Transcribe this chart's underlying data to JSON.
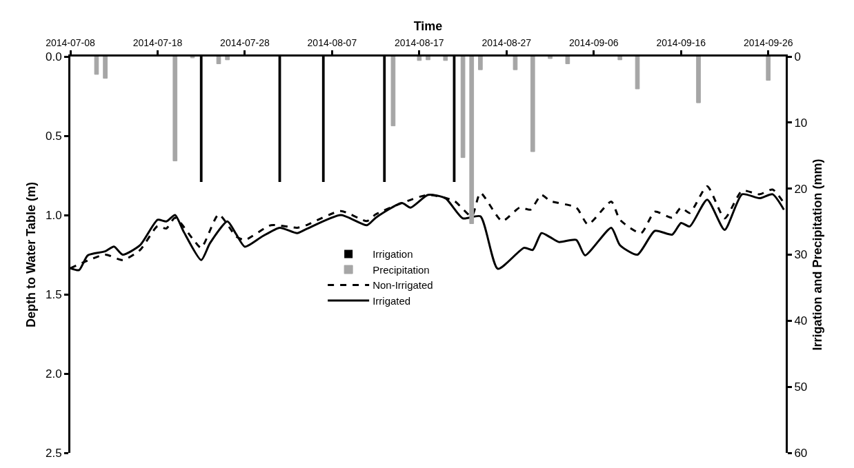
{
  "chart_data": {
    "type": "line",
    "xlabel": "Time",
    "ylabel": "Depth to Water Table (m)",
    "y2label": "Irrigation and Precipitation (mm)",
    "xlim": [
      "2014-07-08",
      "2014-09-28"
    ],
    "xticks": [
      "2014-07-08",
      "2014-07-18",
      "2014-07-28",
      "2014-08-07",
      "2014-08-17",
      "2014-08-27",
      "2014-09-06",
      "2014-09-16",
      "2014-09-26"
    ],
    "ylim": [
      2.5,
      0
    ],
    "yticks": [
      {
        "value": 0,
        "label": "0.0"
      },
      0.5,
      {
        "value": 1,
        "label": "1.0"
      },
      1.5,
      {
        "value": 2,
        "label": "2.0"
      },
      2.5
    ],
    "y2lim": [
      60,
      0
    ],
    "y2ticks": [
      0,
      10,
      20,
      30,
      40,
      50,
      60
    ],
    "grid": false,
    "legend": "center",
    "marker": "none",
    "series": [
      {
        "name": "Irrigation",
        "type": "bar",
        "axis": "y2",
        "color": "#000000",
        "x": [
          "2014-07-23",
          "2014-08-01",
          "2014-08-06",
          "2014-08-13",
          "2014-08-21"
        ],
        "values": [
          19,
          19,
          19,
          19,
          19
        ]
      },
      {
        "name": "Precipitation",
        "type": "bar",
        "axis": "y2",
        "color": "#a6a6a6",
        "x": [
          "2014-07-11",
          "2014-07-12",
          "2014-07-20",
          "2014-07-22",
          "2014-07-25",
          "2014-07-26",
          "2014-08-14",
          "2014-08-17",
          "2014-08-18",
          "2014-08-20",
          "2014-08-22",
          "2014-08-23",
          "2014-08-24",
          "2014-08-28",
          "2014-08-30",
          "2014-09-01",
          "2014-09-03",
          "2014-09-09",
          "2014-09-11",
          "2014-09-18",
          "2014-09-26"
        ],
        "values": [
          2.7,
          3.3,
          15.8,
          0.2,
          1.1,
          0.5,
          10.5,
          0.6,
          0.5,
          0.6,
          15.3,
          25.3,
          2.0,
          2.0,
          14.4,
          0.3,
          1.1,
          0.5,
          4.9,
          7.0,
          3.6
        ]
      },
      {
        "name": "Non-Irrigated",
        "line_style": "dashed",
        "color": "#000000",
        "x": [
          "2014-07-08",
          "2014-07-12",
          "2014-07-14",
          "2014-07-16",
          "2014-07-18",
          "2014-07-19",
          "2014-07-20",
          "2014-07-22",
          "2014-07-23",
          "2014-07-25",
          "2014-07-27",
          "2014-07-28",
          "2014-07-31",
          "2014-08-03",
          "2014-08-04",
          "2014-08-08",
          "2014-08-11",
          "2014-08-12",
          "2014-08-15",
          "2014-08-18",
          "2014-08-21",
          "2014-08-23",
          "2014-08-24",
          "2014-08-26T12:00",
          "2014-08-28T12:00",
          "2014-08-29T18:00",
          "2014-08-31",
          "2014-09-01",
          "2014-09-04",
          "2014-09-05T08:00",
          "2014-09-08",
          "2014-09-09",
          "2014-09-11T10:00",
          "2014-09-13",
          "2014-09-15",
          "2014-09-16",
          "2014-09-17",
          "2014-09-19",
          "2014-09-21",
          "2014-09-23",
          "2014-09-25",
          "2014-09-26T12:00",
          "2014-09-27T19:00"
        ],
        "values": [
          1.335,
          1.25,
          1.284,
          1.22,
          1.07,
          1.085,
          1.017,
          1.148,
          1.207,
          0.996,
          1.135,
          1.157,
          1.064,
          1.08,
          1.065,
          0.975,
          1.038,
          0.996,
          0.924,
          0.873,
          0.911,
          1.008,
          0.86,
          1.038,
          0.953,
          0.966,
          0.873,
          0.911,
          0.953,
          1.059,
          0.915,
          1.03,
          1.114,
          0.979,
          1.017,
          0.953,
          0.987,
          0.818,
          1.021,
          0.847,
          0.869,
          0.839,
          0.924
        ]
      },
      {
        "name": "Irrigated",
        "line_style": "solid",
        "color": "#000000",
        "x": [
          "2014-07-08",
          "2014-07-09",
          "2014-07-10",
          "2014-07-12",
          "2014-07-13",
          "2014-07-14",
          "2014-07-16",
          "2014-07-18",
          "2014-07-19",
          "2014-07-20",
          "2014-07-21",
          "2014-07-23",
          "2014-07-24",
          "2014-07-26",
          "2014-07-27",
          "2014-07-28",
          "2014-07-30",
          "2014-08-01",
          "2014-08-03",
          "2014-08-04",
          "2014-08-08",
          "2014-08-11",
          "2014-08-12",
          "2014-08-15",
          "2014-08-16",
          "2014-08-18",
          "2014-08-20",
          "2014-08-22",
          "2014-08-24",
          "2014-08-26",
          "2014-08-29",
          "2014-08-30",
          "2014-08-31",
          "2014-09-01",
          "2014-09-02",
          "2014-09-04",
          "2014-09-05",
          "2014-09-08",
          "2014-09-09",
          "2014-09-11",
          "2014-09-13",
          "2014-09-15",
          "2014-09-16",
          "2014-09-17",
          "2014-09-19",
          "2014-09-21",
          "2014-09-23",
          "2014-09-25",
          "2014-09-26T12:00",
          "2014-09-27T19:00"
        ],
        "values": [
          1.335,
          1.347,
          1.254,
          1.229,
          1.199,
          1.25,
          1.19,
          1.03,
          1.04,
          1.0,
          1.106,
          1.284,
          1.178,
          1.04,
          1.12,
          1.2,
          1.135,
          1.08,
          1.114,
          1.09,
          1.0,
          1.064,
          1.017,
          0.924,
          0.953,
          0.873,
          0.894,
          1.021,
          1.008,
          1.339,
          1.207,
          1.22,
          1.114,
          1.14,
          1.17,
          1.157,
          1.254,
          1.08,
          1.19,
          1.25,
          1.1,
          1.123,
          1.05,
          1.072,
          0.903,
          1.093,
          0.869,
          0.894,
          0.869,
          0.966
        ]
      }
    ]
  }
}
